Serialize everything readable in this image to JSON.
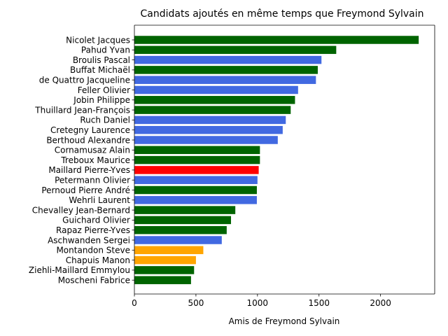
{
  "chart_data": {
    "type": "bar",
    "orientation": "horizontal",
    "title": "Candidats ajoutés en même temps que Freymond Sylvain",
    "xlabel": "Amis de Freymond Sylvain",
    "ylabel": "",
    "xlim": [
      0,
      2440
    ],
    "xticks": [
      0,
      500,
      1000,
      1500,
      2000
    ],
    "grid": false,
    "colors": {
      "green": "#006400",
      "blue": "#4169e1",
      "red": "#ff0000",
      "orange": "#ffa500"
    },
    "bars": [
      {
        "label": "Nicolet Jacques",
        "value": 2310,
        "color": "green"
      },
      {
        "label": "Pahud Yvan",
        "value": 1640,
        "color": "green"
      },
      {
        "label": "Broulis Pascal",
        "value": 1520,
        "color": "blue"
      },
      {
        "label": "Buffat Michaël",
        "value": 1490,
        "color": "green"
      },
      {
        "label": "de Quattro Jacqueline",
        "value": 1475,
        "color": "blue"
      },
      {
        "label": "Feller Olivier",
        "value": 1330,
        "color": "blue"
      },
      {
        "label": "Jobin Philippe",
        "value": 1305,
        "color": "green"
      },
      {
        "label": "Thuillard Jean-François",
        "value": 1270,
        "color": "green"
      },
      {
        "label": "Ruch Daniel",
        "value": 1230,
        "color": "blue"
      },
      {
        "label": "Cretegny Laurence",
        "value": 1205,
        "color": "blue"
      },
      {
        "label": "Berthoud Alexandre",
        "value": 1165,
        "color": "blue"
      },
      {
        "label": "Cornamusaz Alain",
        "value": 1020,
        "color": "green"
      },
      {
        "label": "Treboux Maurice",
        "value": 1020,
        "color": "green"
      },
      {
        "label": "Maillard Pierre-Yves",
        "value": 1010,
        "color": "red"
      },
      {
        "label": "Petermann Olivier",
        "value": 1000,
        "color": "blue"
      },
      {
        "label": "Pernoud Pierre André",
        "value": 995,
        "color": "green"
      },
      {
        "label": "Wehrli Laurent",
        "value": 995,
        "color": "blue"
      },
      {
        "label": "Chevalley Jean-Bernard",
        "value": 820,
        "color": "green"
      },
      {
        "label": "Guichard Olivier",
        "value": 785,
        "color": "green"
      },
      {
        "label": "Rapaz Pierre-Yves",
        "value": 750,
        "color": "green"
      },
      {
        "label": "Aschwanden Sergei",
        "value": 710,
        "color": "blue"
      },
      {
        "label": "Montandon Steve",
        "value": 560,
        "color": "orange"
      },
      {
        "label": "Chapuis Manon",
        "value": 500,
        "color": "orange"
      },
      {
        "label": "Ziehli-Maillard Emmylou",
        "value": 485,
        "color": "green"
      },
      {
        "label": "Moscheni Fabrice",
        "value": 460,
        "color": "green"
      }
    ]
  }
}
